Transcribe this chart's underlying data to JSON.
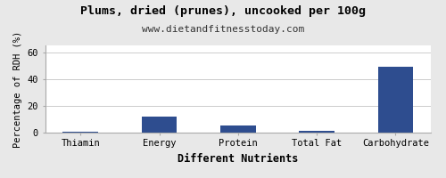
{
  "title": "Plums, dried (prunes), uncooked per 100g",
  "subtitle": "www.dietandfitnesstoday.com",
  "xlabel": "Different Nutrients",
  "ylabel": "Percentage of RDH (%)",
  "categories": [
    "Thiamin",
    "Energy",
    "Protein",
    "Total Fat",
    "Carbohydrate"
  ],
  "values": [
    0.3,
    12,
    5,
    1.5,
    49
  ],
  "bar_color": "#2e4d8f",
  "ylim": [
    0,
    65
  ],
  "yticks": [
    0,
    20,
    40,
    60
  ],
  "background_color": "#e8e8e8",
  "plot_bg_color": "#ffffff",
  "title_fontsize": 9.5,
  "subtitle_fontsize": 8,
  "axis_label_fontsize": 8.5,
  "tick_fontsize": 7.5,
  "bar_width": 0.45
}
